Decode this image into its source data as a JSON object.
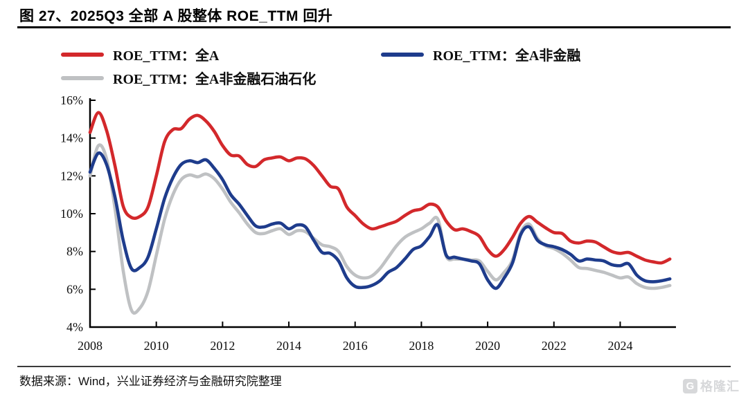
{
  "header": {
    "title": "图 27、2025Q3 全部 A 股整体 ROE_TTM 回升"
  },
  "legend": {
    "items": [
      {
        "label": "ROE_TTM：全A",
        "color": "#d3282b"
      },
      {
        "label": "ROE_TTM：全A非金融",
        "color": "#1e3c8c"
      },
      {
        "label": "ROE_TTM：全A非金融石油石化",
        "color": "#bfc1c3"
      }
    ]
  },
  "chart_data": {
    "type": "line",
    "title": "2025Q3 全部 A 股整体 ROE_TTM 回升",
    "x_start": 2008.0,
    "x_step": 0.25,
    "x_range": [
      2008,
      2025.6
    ],
    "y_range": [
      4,
      16
    ],
    "y_ticks": [
      16,
      14,
      12,
      10,
      8,
      6,
      4
    ],
    "y_tick_suffix": "%",
    "x_tick_years": [
      2010,
      2012,
      2014,
      2016,
      2018,
      2020,
      2022,
      2024
    ],
    "x_labels": [
      2008,
      2010,
      2012,
      2014,
      2016,
      2018,
      2020,
      2022,
      2024
    ],
    "grid": false,
    "legend_position": "top",
    "series": [
      {
        "name": "ROE_TTM：全A",
        "color": "#d3282b",
        "values": [
          14.3,
          15.35,
          14.4,
          12.55,
          10.4,
          9.8,
          9.85,
          10.35,
          12.0,
          13.8,
          14.45,
          14.5,
          15.0,
          15.2,
          14.9,
          14.35,
          13.6,
          13.1,
          13.05,
          12.6,
          12.5,
          12.85,
          12.95,
          13.0,
          12.8,
          12.95,
          12.9,
          12.55,
          12.0,
          11.45,
          11.3,
          10.35,
          9.9,
          9.45,
          9.2,
          9.3,
          9.45,
          9.6,
          9.9,
          10.15,
          10.25,
          10.5,
          10.35,
          9.6,
          9.15,
          9.2,
          9.05,
          8.8,
          8.1,
          7.75,
          8.1,
          8.75,
          9.5,
          9.85,
          9.55,
          9.25,
          9.0,
          8.95,
          8.55,
          8.45,
          8.55,
          8.5,
          8.25,
          8.0,
          7.9,
          7.95,
          7.75,
          7.55,
          7.45,
          7.4,
          7.6
        ]
      },
      {
        "name": "ROE_TTM：全A非金融",
        "color": "#1e3c8c",
        "values": [
          12.2,
          13.2,
          12.6,
          10.9,
          8.6,
          7.1,
          7.15,
          7.7,
          9.2,
          10.8,
          11.9,
          12.6,
          12.8,
          12.7,
          12.85,
          12.4,
          11.8,
          11.0,
          10.5,
          9.9,
          9.35,
          9.3,
          9.45,
          9.5,
          9.2,
          9.4,
          9.3,
          8.6,
          7.95,
          7.9,
          7.5,
          6.6,
          6.15,
          6.1,
          6.2,
          6.45,
          6.9,
          7.15,
          7.6,
          8.1,
          8.3,
          8.8,
          9.4,
          7.8,
          7.7,
          7.6,
          7.5,
          7.35,
          6.5,
          6.05,
          6.6,
          7.4,
          8.9,
          9.3,
          8.6,
          8.35,
          8.25,
          8.1,
          7.85,
          7.5,
          7.6,
          7.55,
          7.5,
          7.3,
          7.25,
          7.35,
          6.75,
          6.45,
          6.4,
          6.45,
          6.55
        ]
      },
      {
        "name": "ROE_TTM：全A非金融石油石化",
        "color": "#bfc1c3",
        "values": [
          12.0,
          13.6,
          12.9,
          10.3,
          7.0,
          4.9,
          5.0,
          5.9,
          7.8,
          9.7,
          11.0,
          11.8,
          12.05,
          11.95,
          12.1,
          11.85,
          11.3,
          10.6,
          10.05,
          9.45,
          9.0,
          8.95,
          9.1,
          9.2,
          8.9,
          9.1,
          9.05,
          8.7,
          8.35,
          8.25,
          8.0,
          7.2,
          6.75,
          6.6,
          6.7,
          7.1,
          7.7,
          8.3,
          8.75,
          9.0,
          9.2,
          9.5,
          9.7,
          7.75,
          7.6,
          7.6,
          7.55,
          7.5,
          6.95,
          6.5,
          6.9,
          7.55,
          9.0,
          9.45,
          8.7,
          8.3,
          8.15,
          7.9,
          7.55,
          7.15,
          7.1,
          7.0,
          6.9,
          6.75,
          6.6,
          6.65,
          6.3,
          6.1,
          6.05,
          6.1,
          6.2
        ]
      }
    ]
  },
  "source": {
    "text": "数据来源：Wind，兴业证券经济与金融研究院整理"
  },
  "watermark": {
    "icon": "G",
    "text": "格隆汇"
  }
}
